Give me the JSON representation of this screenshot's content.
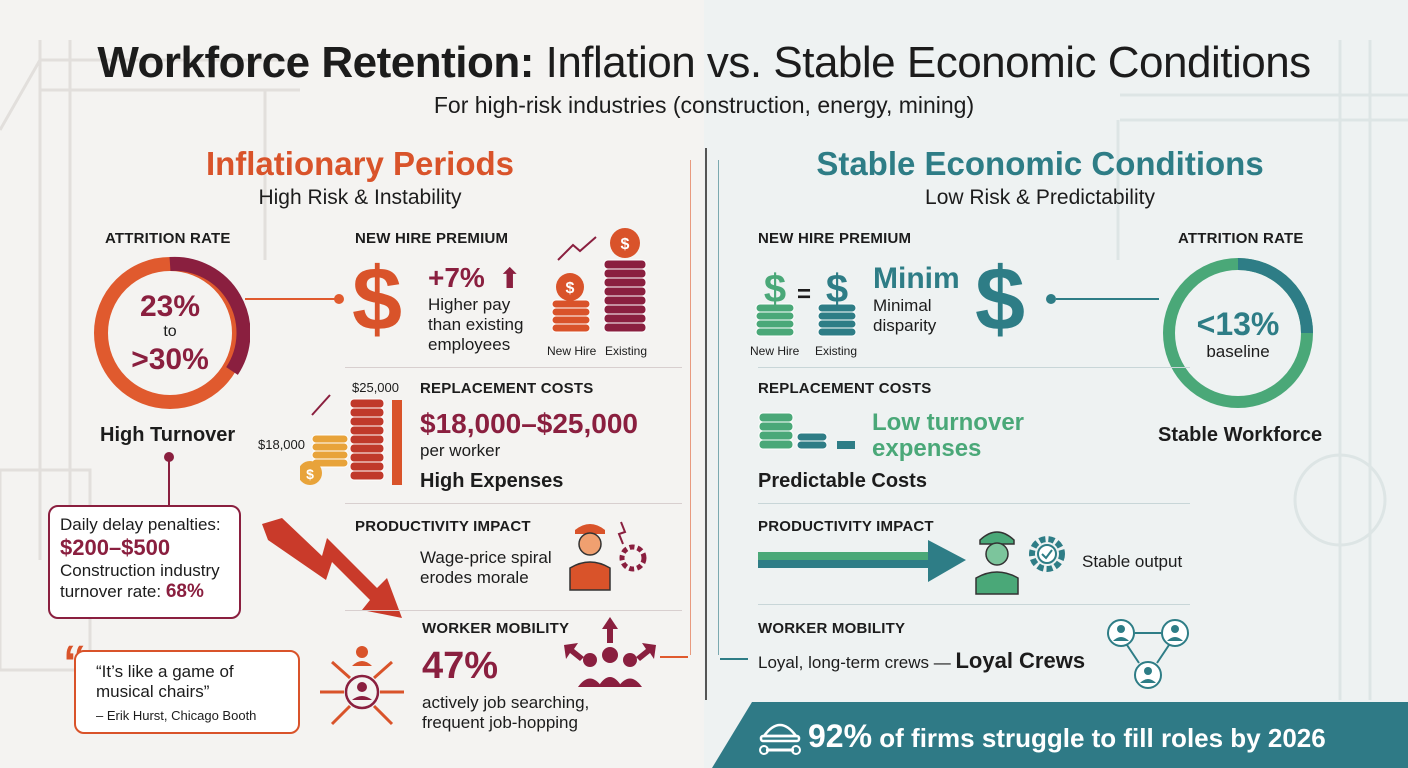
{
  "title_bold": "Workforce Retention:",
  "title_rest": " Inflation vs. Stable Economic Conditions",
  "subtitle": "For high-risk industries (construction, energy, mining)",
  "left": {
    "heading": "Inflationary Periods",
    "subheading": "High Risk & Instability",
    "attrition": {
      "label": "ATTRITION RATE",
      "top": "23%",
      "to": "to",
      "bottom": ">30%",
      "caption": "High Turnover"
    },
    "premium": {
      "label": "NEW HIRE PREMIUM",
      "value": "+7%",
      "desc": [
        "Higher pay",
        "than existing",
        "employees"
      ],
      "new_hire": "New Hire",
      "existing": "Existing"
    },
    "replacement": {
      "label": "REPLACEMENT COSTS",
      "value": "$18,000–$25,000",
      "per": "per worker",
      "caption": "High Expenses",
      "high": "$25,000",
      "low": "$18,000"
    },
    "penalty": {
      "line1": "Daily delay penalties:",
      "value": "$200–$500",
      "line2": "Construction industry",
      "line3": "turnover rate:",
      "rate": "68%"
    },
    "productivity": {
      "label": "PRODUCTIVITY IMPACT",
      "line1": "Wage-price spiral",
      "line2": "erodes morale"
    },
    "mobility": {
      "label": "WORKER MOBILITY",
      "value": "47%",
      "line1": "actively job searching,",
      "line2": "frequent job-hopping"
    },
    "quote": {
      "mark": "“",
      "text1": "“It’s like a game of",
      "text2": "musical chairs”",
      "author": "– Erik Hurst, Chicago Booth"
    }
  },
  "right": {
    "heading": "Stable Economic Conditions",
    "subheading": "Low Risk & Predictability",
    "premium": {
      "label": "NEW HIRE PREMIUM",
      "value": "Minim",
      "desc1": "Minimal",
      "desc2": "disparity",
      "new_hire": "New Hire",
      "existing": "Existing",
      "equals": "="
    },
    "attrition": {
      "label": "ATTRITION RATE",
      "value": "<13%",
      "sub": "baseline",
      "caption": "Stable Workforce"
    },
    "replacement": {
      "label": "REPLACEMENT COSTS",
      "value1": "Low turnover",
      "value2": "expenses",
      "caption": "Predictable Costs"
    },
    "productivity": {
      "label": "PRODUCTIVITY IMPACT",
      "text": "Stable output"
    },
    "mobility": {
      "label": "WORKER MOBILITY",
      "text": "Loyal, long-term crews —",
      "bold": "Loyal Crews"
    }
  },
  "banner": {
    "value": "92%",
    "text": " of firms struggle to fill roles by 2026",
    "icon": "hardhat-wrench-icon"
  },
  "colors": {
    "orange": "#d9532a",
    "maroon": "#8a1f3f",
    "teal": "#2e7d86",
    "green": "#4aa878"
  }
}
